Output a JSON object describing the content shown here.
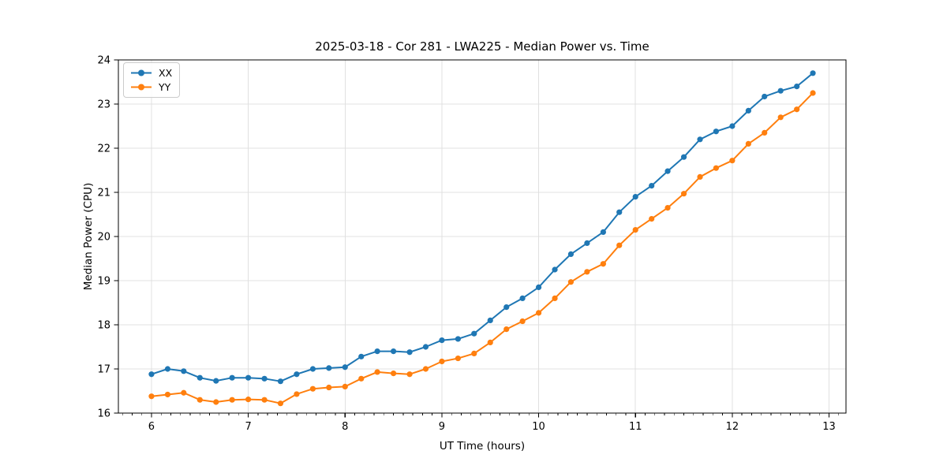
{
  "chart_data": {
    "type": "line",
    "title": "2025-03-18 - Cor 281 - LWA225 - Median Power vs. Time",
    "xlabel": "UT Time (hours)",
    "ylabel": "Median Power (CPU)",
    "xlim": [
      5.658,
      13.175
    ],
    "ylim": [
      16,
      24
    ],
    "xticks": [
      6,
      7,
      8,
      9,
      10,
      11,
      12,
      13
    ],
    "yticks": [
      16,
      17,
      18,
      19,
      20,
      21,
      22,
      23,
      24
    ],
    "x_minor_tick_step": 0.1,
    "grid": true,
    "grid_color": "#e0e0e0",
    "legend_position": "upper left",
    "x": [
      6.0,
      6.167,
      6.333,
      6.5,
      6.667,
      6.833,
      7.0,
      7.167,
      7.333,
      7.5,
      7.667,
      7.833,
      8.0,
      8.167,
      8.333,
      8.5,
      8.667,
      8.833,
      9.0,
      9.167,
      9.333,
      9.5,
      9.667,
      9.833,
      10.0,
      10.167,
      10.333,
      10.5,
      10.667,
      10.833,
      11.0,
      11.167,
      11.333,
      11.5,
      11.667,
      11.833,
      12.0,
      12.167,
      12.333,
      12.5,
      12.667,
      12.833
    ],
    "series": [
      {
        "name": "XX",
        "color": "#1f77b4",
        "values": [
          16.88,
          17.0,
          16.95,
          16.8,
          16.73,
          16.8,
          16.8,
          16.78,
          16.72,
          16.88,
          17.0,
          17.02,
          17.04,
          17.28,
          17.4,
          17.4,
          17.38,
          17.5,
          17.65,
          17.68,
          17.8,
          18.1,
          18.4,
          18.6,
          18.85,
          19.25,
          19.6,
          19.85,
          20.1,
          20.55,
          20.9,
          21.15,
          21.48,
          21.8,
          22.2,
          22.38,
          22.5,
          22.85,
          23.17,
          23.3,
          23.4,
          23.7
        ]
      },
      {
        "name": "YY",
        "color": "#ff7f0e",
        "values": [
          16.38,
          16.42,
          16.46,
          16.3,
          16.25,
          16.3,
          16.31,
          16.3,
          16.22,
          16.43,
          16.55,
          16.58,
          16.6,
          16.78,
          16.93,
          16.9,
          16.88,
          17.0,
          17.17,
          17.24,
          17.35,
          17.6,
          17.9,
          18.08,
          18.27,
          18.6,
          18.97,
          19.2,
          19.38,
          19.8,
          20.15,
          20.4,
          20.65,
          20.97,
          21.35,
          21.55,
          21.72,
          22.1,
          22.35,
          22.7,
          22.88,
          23.25
        ]
      }
    ]
  }
}
